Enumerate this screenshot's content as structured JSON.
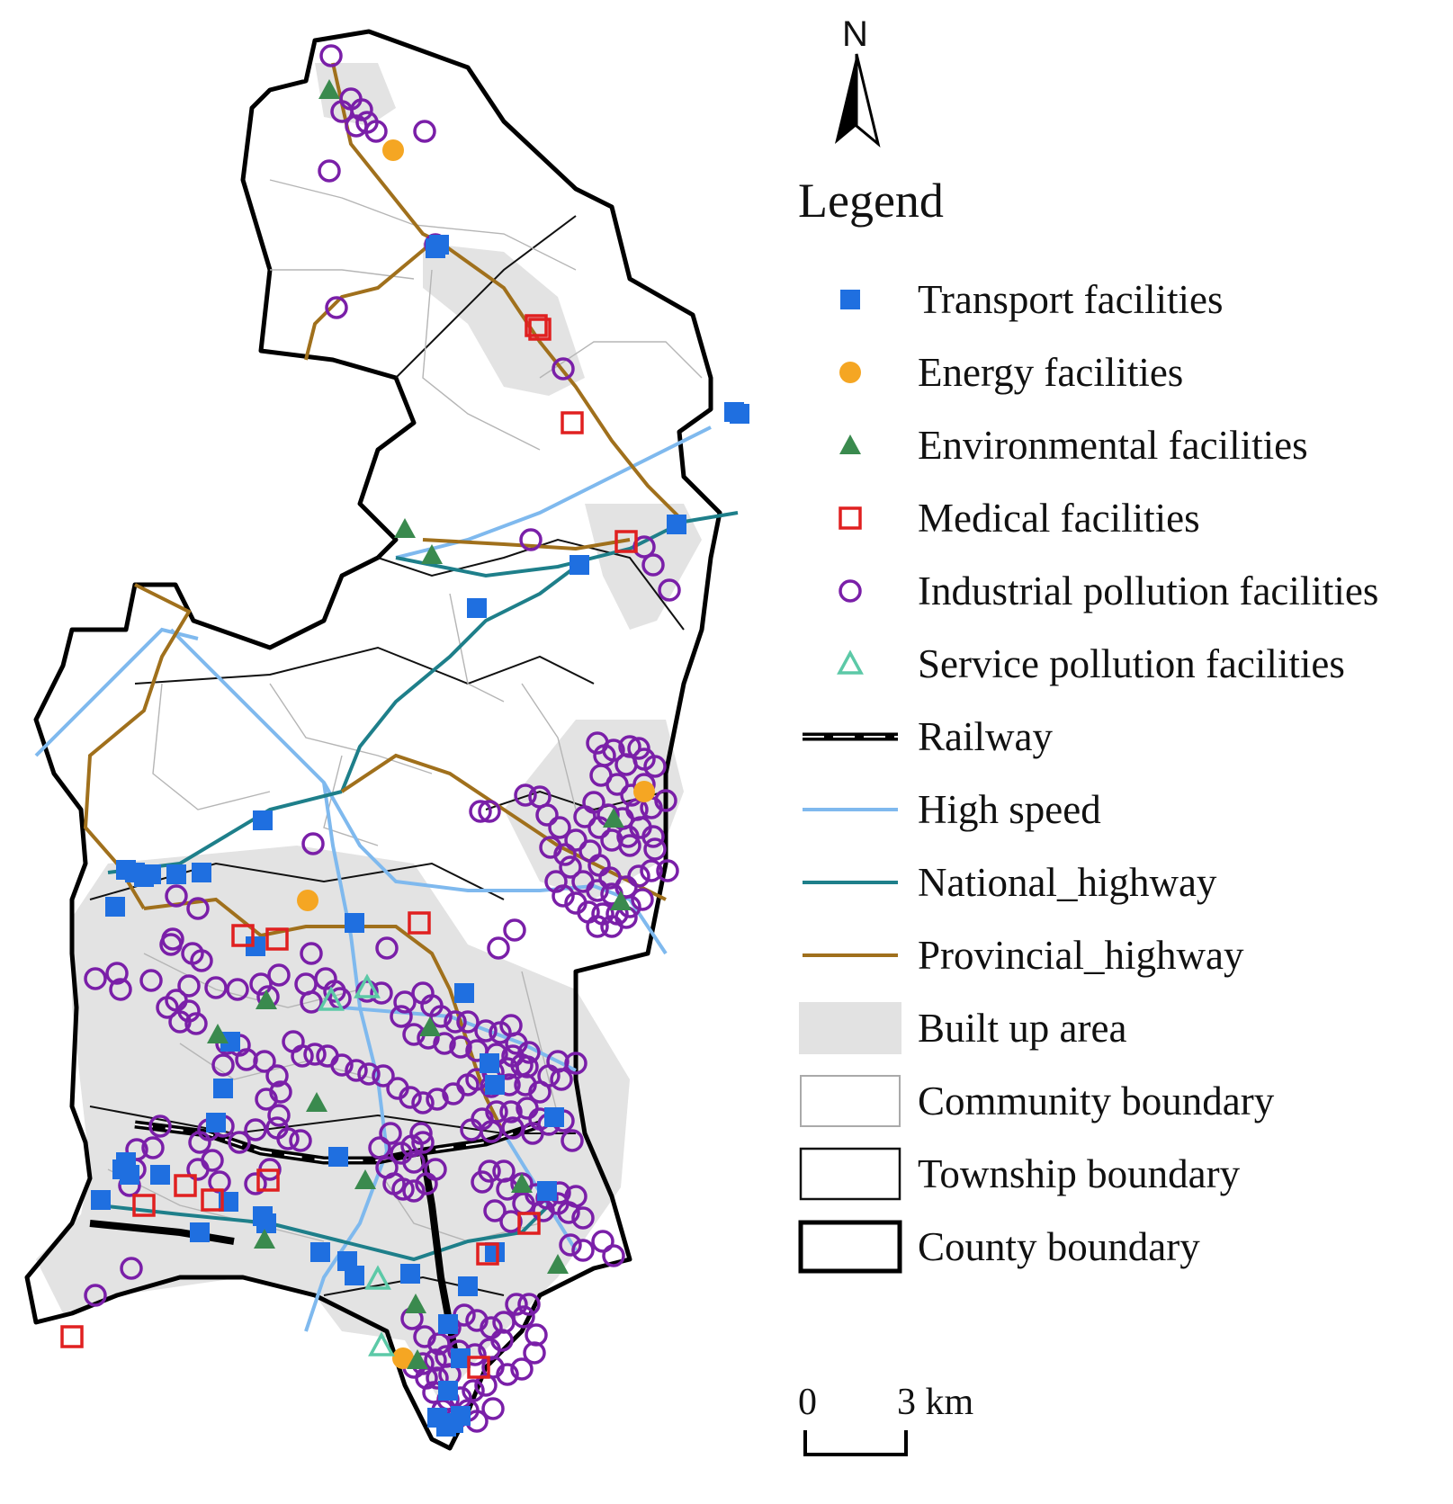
{
  "map": {
    "north_label": "N",
    "legend_title": "Legend",
    "legend": [
      {
        "label": "Transport facilities",
        "symbol": "blue-square",
        "color": "#1f6fe0"
      },
      {
        "label": "Energy facilities",
        "symbol": "orange-circle",
        "color": "#f5a623"
      },
      {
        "label": "Environmental facilities",
        "symbol": "green-triangle",
        "color": "#3a8a4e"
      },
      {
        "label": "Medical facilities",
        "symbol": "red-hollow-square",
        "color": "#e02020"
      },
      {
        "label": "Industrial pollution facilities",
        "symbol": "purple-hollow-circle",
        "color": "#7a1fa8"
      },
      {
        "label": "Service pollution facilities",
        "symbol": "teal-hollow-triangle",
        "color": "#5cc9a7"
      },
      {
        "label": "Railway",
        "symbol": "railway-line",
        "color": "#000000"
      },
      {
        "label": "High speed",
        "symbol": "light-blue-line",
        "color": "#7fb9ee"
      },
      {
        "label": "National_highway",
        "symbol": "teal-line",
        "color": "#1e7f8a"
      },
      {
        "label": "Provincial_highway",
        "symbol": "brown-line",
        "color": "#a0701c"
      },
      {
        "label": "Built up area",
        "symbol": "grey-fill",
        "color": "#e2e2e2"
      },
      {
        "label": "Community boundary",
        "symbol": "thin-box",
        "color": "#aaaaaa"
      },
      {
        "label": "Township boundary",
        "symbol": "medium-box",
        "color": "#111111"
      },
      {
        "label": "County boundary",
        "symbol": "thick-box",
        "color": "#000000"
      }
    ],
    "scale_start": "0",
    "scale_end": "3 km"
  }
}
